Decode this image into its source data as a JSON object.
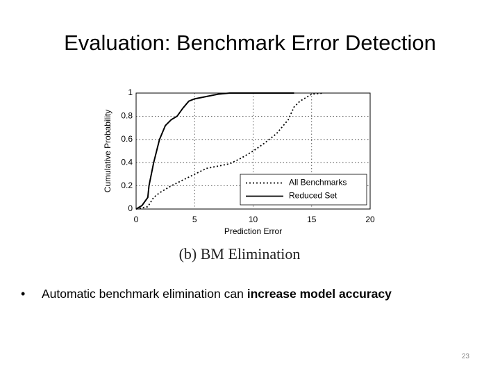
{
  "slide": {
    "title": "Evaluation: Benchmark Error Detection",
    "bullet": {
      "plain": "Automatic benchmark elimination can ",
      "bold": "increase model accuracy"
    },
    "caption": "(b) BM Elimination",
    "page_number": "23"
  },
  "chart_data": {
    "type": "line",
    "x_label": "Prediction Error",
    "y_label": "Cumulative Probability",
    "xlim": [
      0,
      20
    ],
    "xticks": [
      0,
      5,
      10,
      15,
      20
    ],
    "ylim": [
      0,
      1
    ],
    "yticks": [
      0,
      0.2,
      0.4,
      0.6,
      0.8,
      1
    ],
    "grid": true,
    "legend": "lower right",
    "series": [
      {
        "name": "All Benchmarks",
        "color": "#000000",
        "dash": "dotted",
        "x": [
          0,
          1,
          1.5,
          2,
          3,
          4,
          5,
          6,
          7,
          8,
          9,
          10,
          11,
          12,
          13,
          13.5,
          14,
          15,
          16
        ],
        "values": [
          0,
          0.02,
          0.1,
          0.14,
          0.2,
          0.25,
          0.3,
          0.35,
          0.37,
          0.39,
          0.44,
          0.5,
          0.57,
          0.65,
          0.77,
          0.88,
          0.93,
          0.99,
          1
        ]
      },
      {
        "name": "Reduced Set",
        "color": "#000000",
        "dash": "solid",
        "x": [
          0,
          0.5,
          1,
          1.1,
          1.5,
          2,
          2.5,
          3,
          3.5,
          4,
          4.5,
          5,
          6,
          7,
          8,
          13.5
        ],
        "values": [
          0,
          0.03,
          0.1,
          0.2,
          0.4,
          0.6,
          0.72,
          0.77,
          0.8,
          0.87,
          0.93,
          0.95,
          0.97,
          0.99,
          1,
          1
        ]
      }
    ]
  }
}
